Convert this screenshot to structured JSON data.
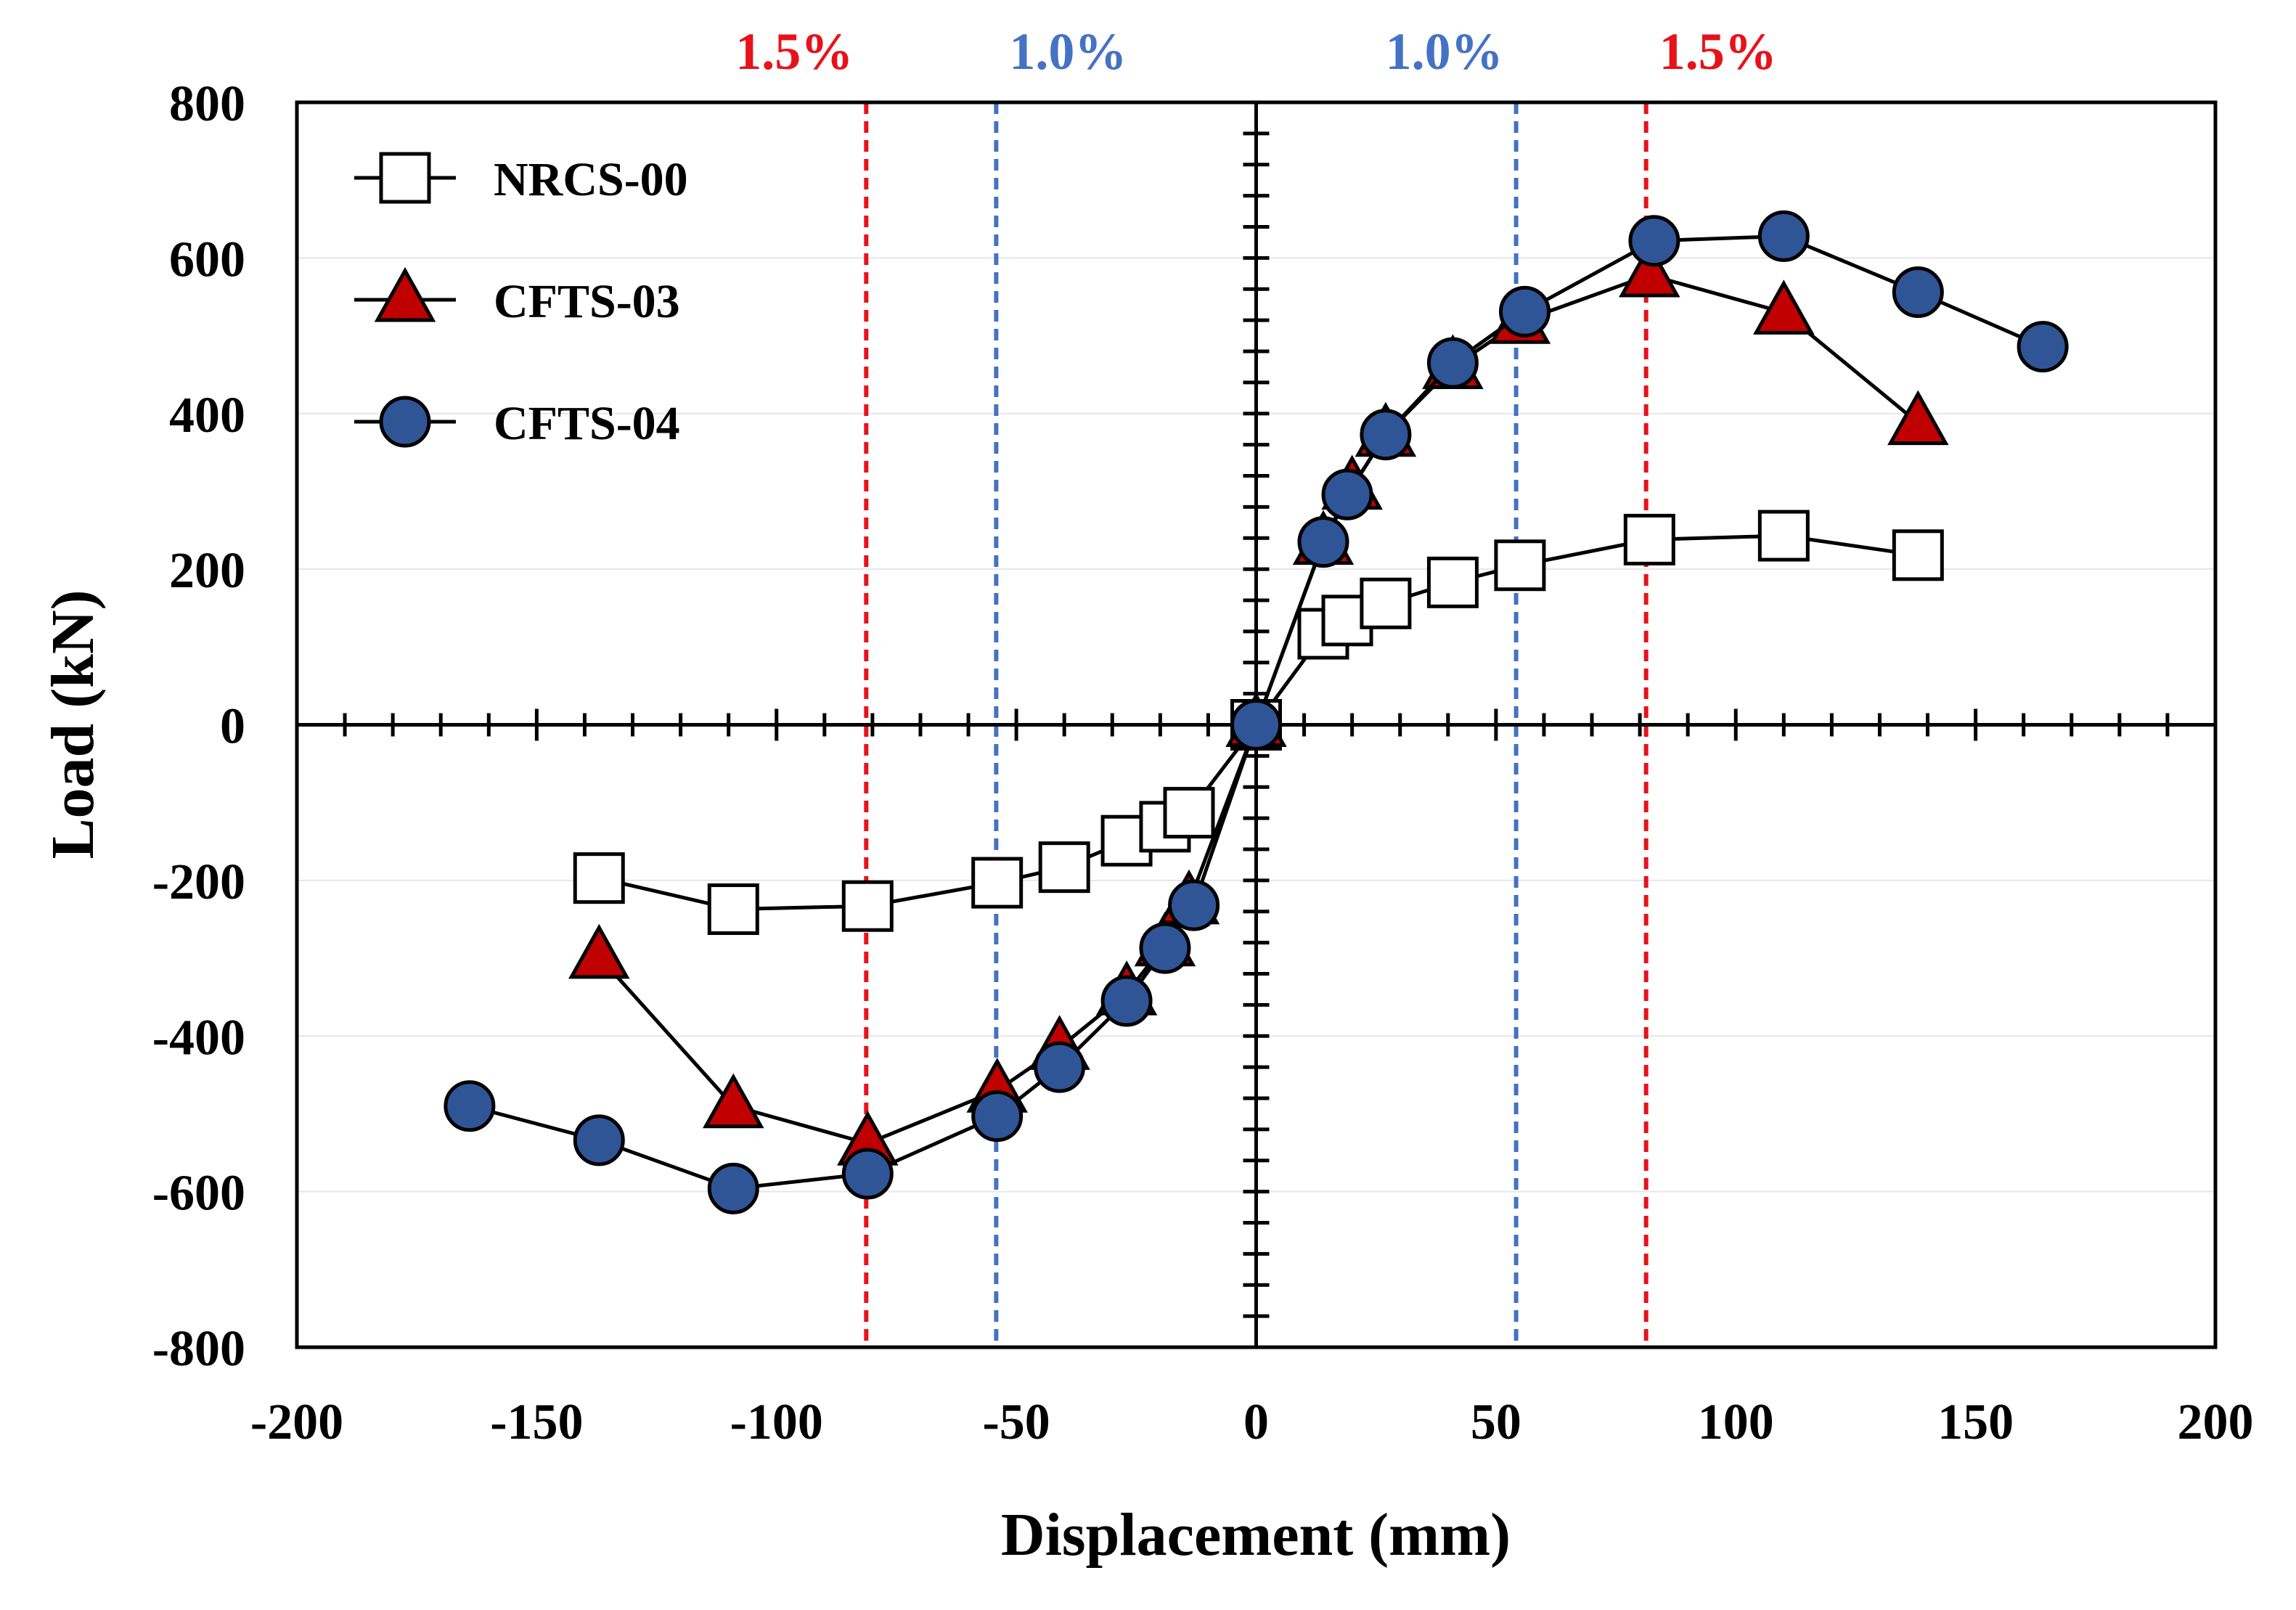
{
  "chart_data": {
    "type": "line",
    "xlabel": "Displacement (mm)",
    "ylabel": "Load (kN)",
    "xlim": [
      -200,
      200
    ],
    "ylim": [
      -800,
      800
    ],
    "x_ticks": [
      -200,
      -150,
      -100,
      -50,
      0,
      50,
      100,
      150,
      200
    ],
    "y_ticks": [
      -800,
      -600,
      -400,
      -200,
      0,
      200,
      400,
      600,
      800
    ],
    "grid": true,
    "legend_position": "top-left",
    "reference_lines": [
      {
        "x": -81.3,
        "label": "1.5%",
        "color": "#e8121a"
      },
      {
        "x": -54.2,
        "label": "1.0%",
        "color": "#4472c4"
      },
      {
        "x": 54.2,
        "label": "1.0%",
        "color": "#4472c4"
      },
      {
        "x": 81.3,
        "label": "1.5%",
        "color": "#e8121a"
      }
    ],
    "series": [
      {
        "name": "NRCS-00",
        "marker": "square",
        "fill": "#ffffff",
        "points": [
          [
            -137,
            -197
          ],
          [
            -109,
            -237
          ],
          [
            -81,
            -233
          ],
          [
            -54,
            -203
          ],
          [
            -40,
            -183
          ],
          [
            -27,
            -149
          ],
          [
            -19,
            -131
          ],
          [
            -14,
            -113
          ],
          [
            0,
            0
          ],
          [
            14,
            117
          ],
          [
            19,
            134
          ],
          [
            27,
            156
          ],
          [
            41,
            183
          ],
          [
            55,
            205
          ],
          [
            82,
            238
          ],
          [
            110,
            243
          ],
          [
            138,
            218
          ]
        ]
      },
      {
        "name": "CFTS-03",
        "marker": "triangle",
        "fill": "#c00000",
        "points": [
          [
            -137,
            -298
          ],
          [
            -109,
            -490
          ],
          [
            -81,
            -538
          ],
          [
            -54,
            -470
          ],
          [
            -41,
            -415
          ],
          [
            -27,
            -345
          ],
          [
            -19,
            -282
          ],
          [
            -14,
            -228
          ],
          [
            0,
            0
          ],
          [
            14,
            234
          ],
          [
            20,
            305
          ],
          [
            27,
            373
          ],
          [
            41,
            460
          ],
          [
            55,
            518
          ],
          [
            82,
            578
          ],
          [
            110,
            530
          ],
          [
            138,
            388
          ]
        ]
      },
      {
        "name": "CFTS-04",
        "marker": "circle",
        "fill": "#2f5597",
        "points": [
          [
            -164,
            -490
          ],
          [
            -137,
            -534
          ],
          [
            -109,
            -596
          ],
          [
            -81,
            -577
          ],
          [
            -54,
            -503
          ],
          [
            -41,
            -440
          ],
          [
            -27,
            -355
          ],
          [
            -19,
            -287
          ],
          [
            -13,
            -232
          ],
          [
            0,
            0
          ],
          [
            14,
            235
          ],
          [
            19,
            296
          ],
          [
            27,
            373
          ],
          [
            41,
            465
          ],
          [
            56,
            531
          ],
          [
            83,
            622
          ],
          [
            110,
            628
          ],
          [
            138,
            556
          ],
          [
            164,
            486
          ]
        ]
      }
    ]
  }
}
